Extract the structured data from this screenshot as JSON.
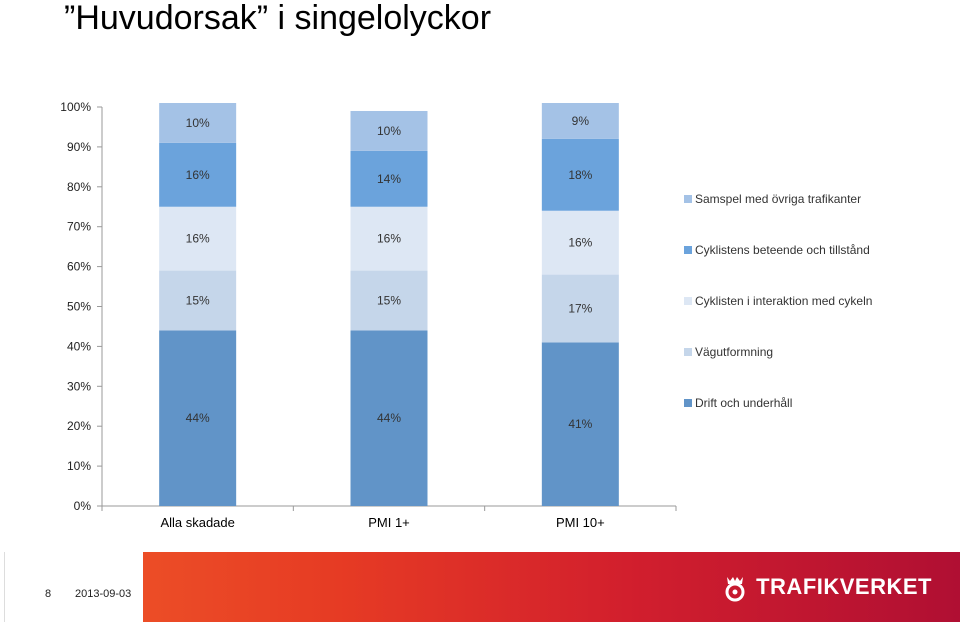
{
  "slide": {
    "title": "”Huvudorsak” i singelolyckor",
    "number": "8",
    "date": "2013-09-03",
    "brand": "TRAFIKVERKET"
  },
  "chart_data": {
    "type": "bar",
    "stacked": true,
    "categories": [
      "Alla skadade",
      "PMI 1+",
      "PMI 10+"
    ],
    "ylim": [
      0,
      100
    ],
    "y_ticks": [
      "0%",
      "10%",
      "20%",
      "30%",
      "40%",
      "50%",
      "60%",
      "70%",
      "80%",
      "90%",
      "100%"
    ],
    "grid": false,
    "legend_position": "right",
    "series": [
      {
        "name": "Drift och underhåll",
        "color": "#6194c8",
        "values": [
          44,
          44,
          41
        ],
        "labels": [
          "44%",
          "44%",
          "41%"
        ]
      },
      {
        "name": "Vägutformning",
        "color": "#c5d6ea",
        "values": [
          15,
          15,
          17
        ],
        "labels": [
          "15%",
          "15%",
          "17%"
        ]
      },
      {
        "name": "Cyklisten i interaktion med cykeln",
        "color": "#dde7f4",
        "values": [
          16,
          16,
          16
        ],
        "labels": [
          "16%",
          "16%",
          "16%"
        ]
      },
      {
        "name": "Cyklistens beteende och tillstånd",
        "color": "#6ba3dc",
        "values": [
          16,
          14,
          18
        ],
        "labels": [
          "16%",
          "14%",
          "18%"
        ]
      },
      {
        "name": "Samspel med övriga trafikanter",
        "color": "#a4c2e6",
        "values": [
          10,
          10,
          9
        ],
        "labels": [
          "10%",
          "10%",
          "9%"
        ]
      }
    ]
  }
}
